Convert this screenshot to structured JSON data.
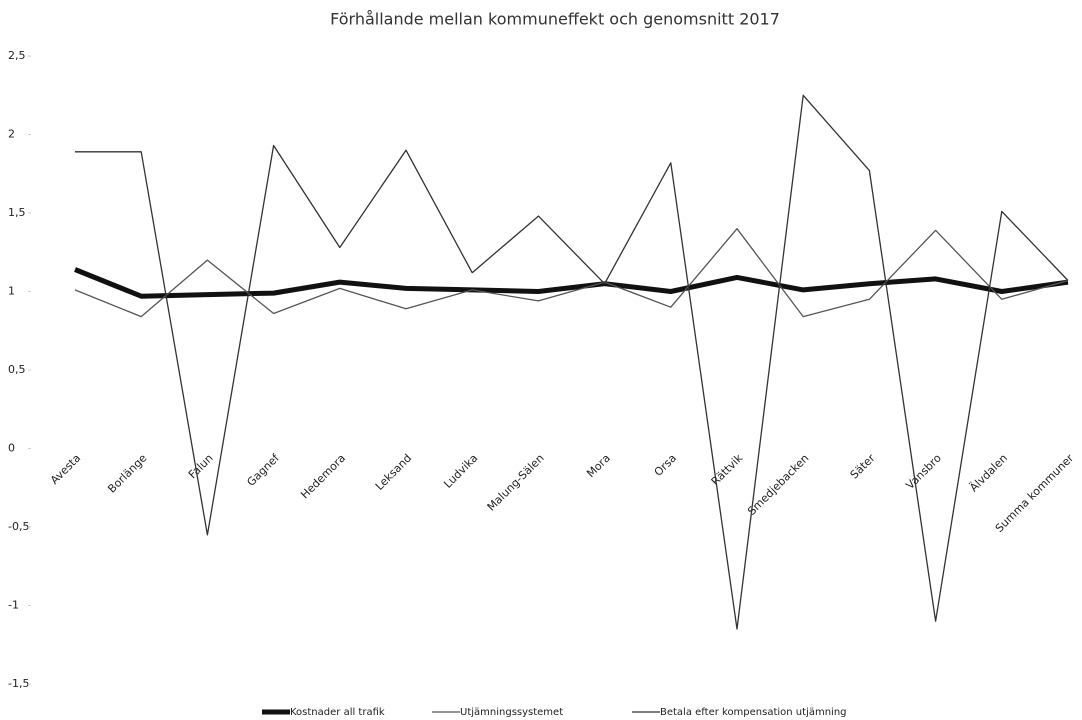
{
  "chart_data": {
    "type": "line",
    "title": "Förhållande mellan kommuneffekt och genomsnitt 2017",
    "categories": [
      "Avesta",
      "Borlänge",
      "Falun",
      "Gagnef",
      "Hedemora",
      "Leksand",
      "Ludvika",
      "Malung-Sälen",
      "Mora",
      "Orsa",
      "Rättvik",
      "Smedjebacken",
      "Säter",
      "Vansbro",
      "Älvdalen",
      "Summa kommuner"
    ],
    "series": [
      {
        "name": "Kostnader all trafik",
        "color": "#111111",
        "width": 5,
        "values": [
          1.14,
          0.97,
          0.98,
          0.99,
          1.06,
          1.02,
          1.01,
          1.0,
          1.05,
          1.0,
          1.09,
          1.01,
          1.05,
          1.08,
          1.0,
          1.06
        ]
      },
      {
        "name": "Utjämningssystemet",
        "color": "#555555",
        "width": 1.3,
        "values": [
          1.01,
          0.84,
          1.2,
          0.86,
          1.02,
          0.89,
          1.01,
          0.94,
          1.06,
          0.9,
          1.4,
          0.84,
          0.95,
          1.39,
          0.95,
          1.07
        ]
      },
      {
        "name": "Betala efter kompensation utjämning",
        "color": "#333333",
        "width": 1.3,
        "values": [
          1.89,
          1.89,
          -0.55,
          1.93,
          1.28,
          1.9,
          1.12,
          1.48,
          1.05,
          1.82,
          -1.15,
          2.25,
          1.77,
          -1.1,
          1.51,
          1.07
        ]
      }
    ],
    "ylim": [
      -1.5,
      2.5
    ],
    "yticks": [
      {
        "value": -1.5,
        "label": "-1,5"
      },
      {
        "value": -1,
        "label": "-1"
      },
      {
        "value": -0.5,
        "label": "-0,5"
      },
      0,
      {
        "value": 0.5,
        "label": "0,5"
      },
      1,
      {
        "value": 1.5,
        "label": "1,5"
      },
      2,
      {
        "value": 2.5,
        "label": "2,5"
      }
    ],
    "legend": "bottom"
  }
}
